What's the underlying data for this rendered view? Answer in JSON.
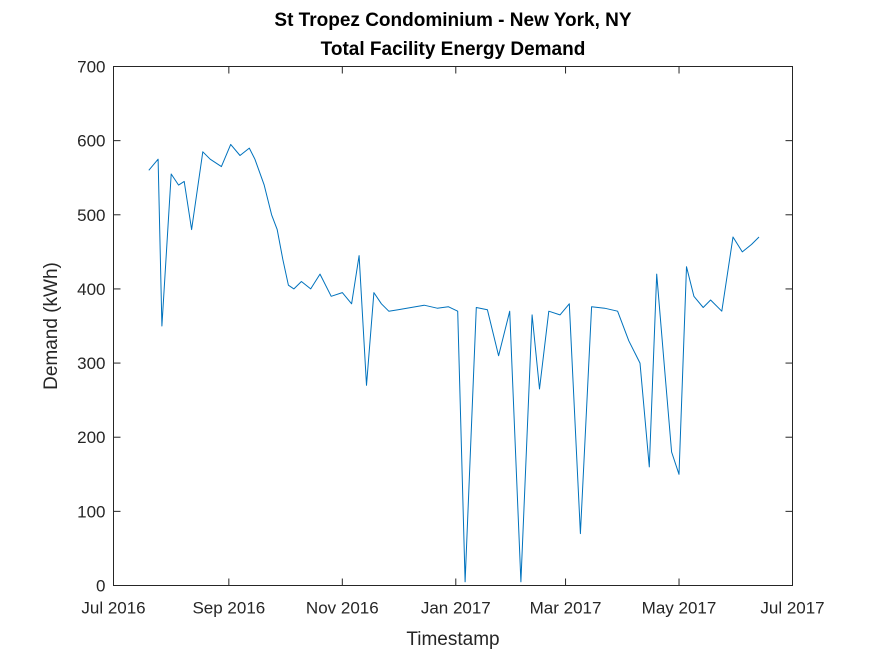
{
  "chart_data": {
    "type": "line",
    "title": "St Tropez Condominium - New York, NY",
    "subtitle": "Total Facility Energy Demand",
    "xlabel": "Timestamp",
    "ylabel": "Demand (kWh)",
    "xlim": [
      "2016-07-01",
      "2017-07-01"
    ],
    "ylim": [
      0,
      700
    ],
    "xticks": [
      {
        "date": "2016-07-01",
        "label": "Jul 2016"
      },
      {
        "date": "2016-09-01",
        "label": "Sep 2016"
      },
      {
        "date": "2016-11-01",
        "label": "Nov 2016"
      },
      {
        "date": "2017-01-01",
        "label": "Jan 2017"
      },
      {
        "date": "2017-03-01",
        "label": "Mar 2017"
      },
      {
        "date": "2017-05-01",
        "label": "May 2017"
      },
      {
        "date": "2017-07-01",
        "label": "Jul 2017"
      }
    ],
    "yticks": [
      0,
      100,
      200,
      300,
      400,
      500,
      600,
      700
    ],
    "grid": false,
    "line_color": "#0072BD",
    "series": [
      {
        "x": [
          "2016-07-20",
          "2016-07-25",
          "2016-07-27",
          "2016-08-01",
          "2016-08-05",
          "2016-08-08",
          "2016-08-12",
          "2016-08-18",
          "2016-08-22",
          "2016-08-28",
          "2016-09-02",
          "2016-09-07",
          "2016-09-12",
          "2016-09-15",
          "2016-09-20",
          "2016-09-24",
          "2016-09-27",
          "2016-09-30",
          "2016-10-03",
          "2016-10-06",
          "2016-10-10",
          "2016-10-15",
          "2016-10-20",
          "2016-10-26",
          "2016-11-01",
          "2016-11-06",
          "2016-11-10",
          "2016-11-14",
          "2016-11-18",
          "2016-11-22",
          "2016-11-26",
          "2016-12-01",
          "2016-12-08",
          "2016-12-15",
          "2016-12-22",
          "2016-12-28",
          "2017-01-02",
          "2017-01-06",
          "2017-01-12",
          "2017-01-18",
          "2017-01-24",
          "2017-01-30",
          "2017-02-05",
          "2017-02-11",
          "2017-02-15",
          "2017-02-20",
          "2017-02-26",
          "2017-03-03",
          "2017-03-09",
          "2017-03-15",
          "2017-03-22",
          "2017-03-29",
          "2017-04-04",
          "2017-04-10",
          "2017-04-15",
          "2017-04-19",
          "2017-04-23",
          "2017-04-27",
          "2017-05-01",
          "2017-05-05",
          "2017-05-09",
          "2017-05-14",
          "2017-05-18",
          "2017-05-24",
          "2017-05-30",
          "2017-06-04",
          "2017-06-09",
          "2017-06-13"
        ],
        "y": [
          560,
          575,
          350,
          555,
          540,
          545,
          480,
          585,
          575,
          565,
          595,
          580,
          590,
          575,
          540,
          500,
          480,
          440,
          405,
          400,
          410,
          400,
          420,
          390,
          395,
          380,
          445,
          270,
          395,
          380,
          370,
          372,
          375,
          378,
          374,
          376,
          370,
          5,
          375,
          372,
          310,
          370,
          5,
          365,
          265,
          370,
          365,
          380,
          70,
          376,
          374,
          370,
          330,
          300,
          160,
          420,
          300,
          180,
          150,
          430,
          390,
          375,
          385,
          370,
          470,
          450,
          460,
          470
        ]
      }
    ]
  }
}
